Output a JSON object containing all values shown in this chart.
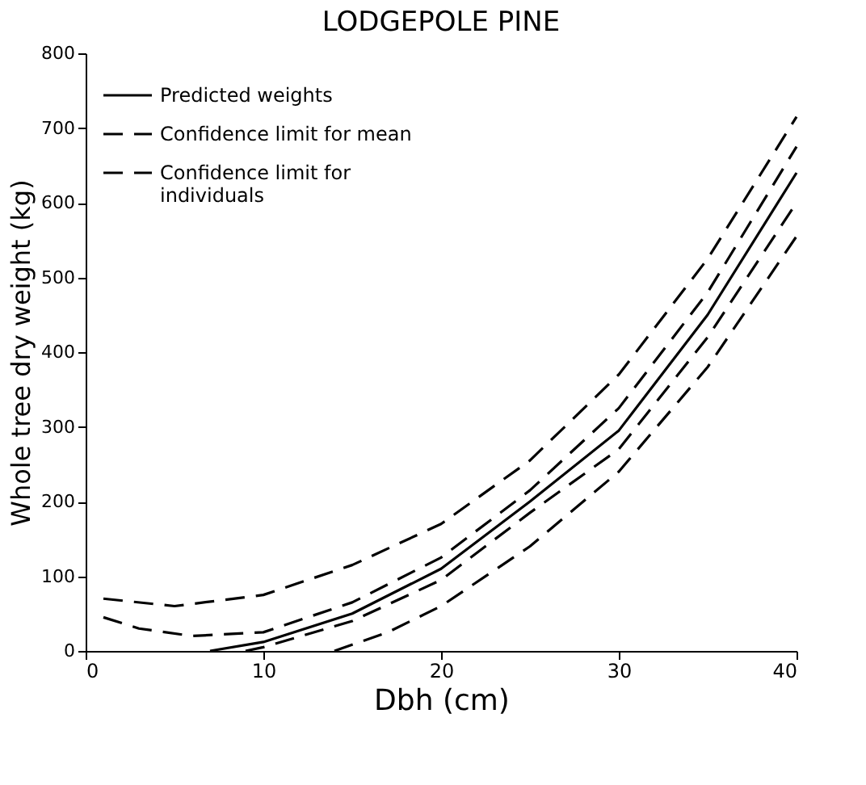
{
  "chart_data": {
    "type": "line",
    "title": "LODGEPOLE PINE",
    "xlabel": "Dbh (cm)",
    "ylabel": "Whole tree dry weight (kg)",
    "xlim": [
      0,
      40
    ],
    "xticks": [
      0,
      10,
      20,
      30,
      40
    ],
    "ylim": [
      0,
      800
    ],
    "yticks": [
      0,
      100,
      200,
      300,
      400,
      500,
      600,
      700,
      800
    ],
    "grid": false,
    "legend": "top left",
    "marker": "none",
    "series": [
      {
        "name": "Predicted weights",
        "color": "#000000",
        "line_style": "solid",
        "x": [
          7,
          10,
          15,
          20,
          25,
          30,
          35,
          40
        ],
        "values": [
          0,
          12,
          50,
          110,
          200,
          295,
          450,
          640
        ]
      },
      {
        "name": "Confidence limit for mean",
        "color": "#000000",
        "line_style": "dashed",
        "x": [
          1,
          3,
          6,
          10,
          15,
          20,
          25,
          30,
          35,
          40
        ],
        "values": [
          45,
          30,
          20,
          25,
          65,
          125,
          215,
          325,
          480,
          675
        ]
      },
      {
        "color": "#000000",
        "line_style": "dashed",
        "x": [
          9,
          10,
          15,
          20,
          25,
          30,
          35,
          40
        ],
        "values": [
          0,
          5,
          40,
          95,
          185,
          270,
          420,
          600
        ]
      },
      {
        "name": "Confidence limit for\nindividuals",
        "color": "#000000",
        "line_style": "dashed",
        "x": [
          1,
          5,
          10,
          15,
          20,
          25,
          30,
          35,
          40
        ],
        "values": [
          70,
          60,
          75,
          115,
          170,
          255,
          370,
          525,
          715
        ]
      },
      {
        "color": "#000000",
        "line_style": "dashed",
        "x": [
          14,
          17,
          20,
          25,
          30,
          35,
          40
        ],
        "values": [
          0,
          25,
          60,
          140,
          240,
          380,
          555
        ]
      }
    ]
  }
}
